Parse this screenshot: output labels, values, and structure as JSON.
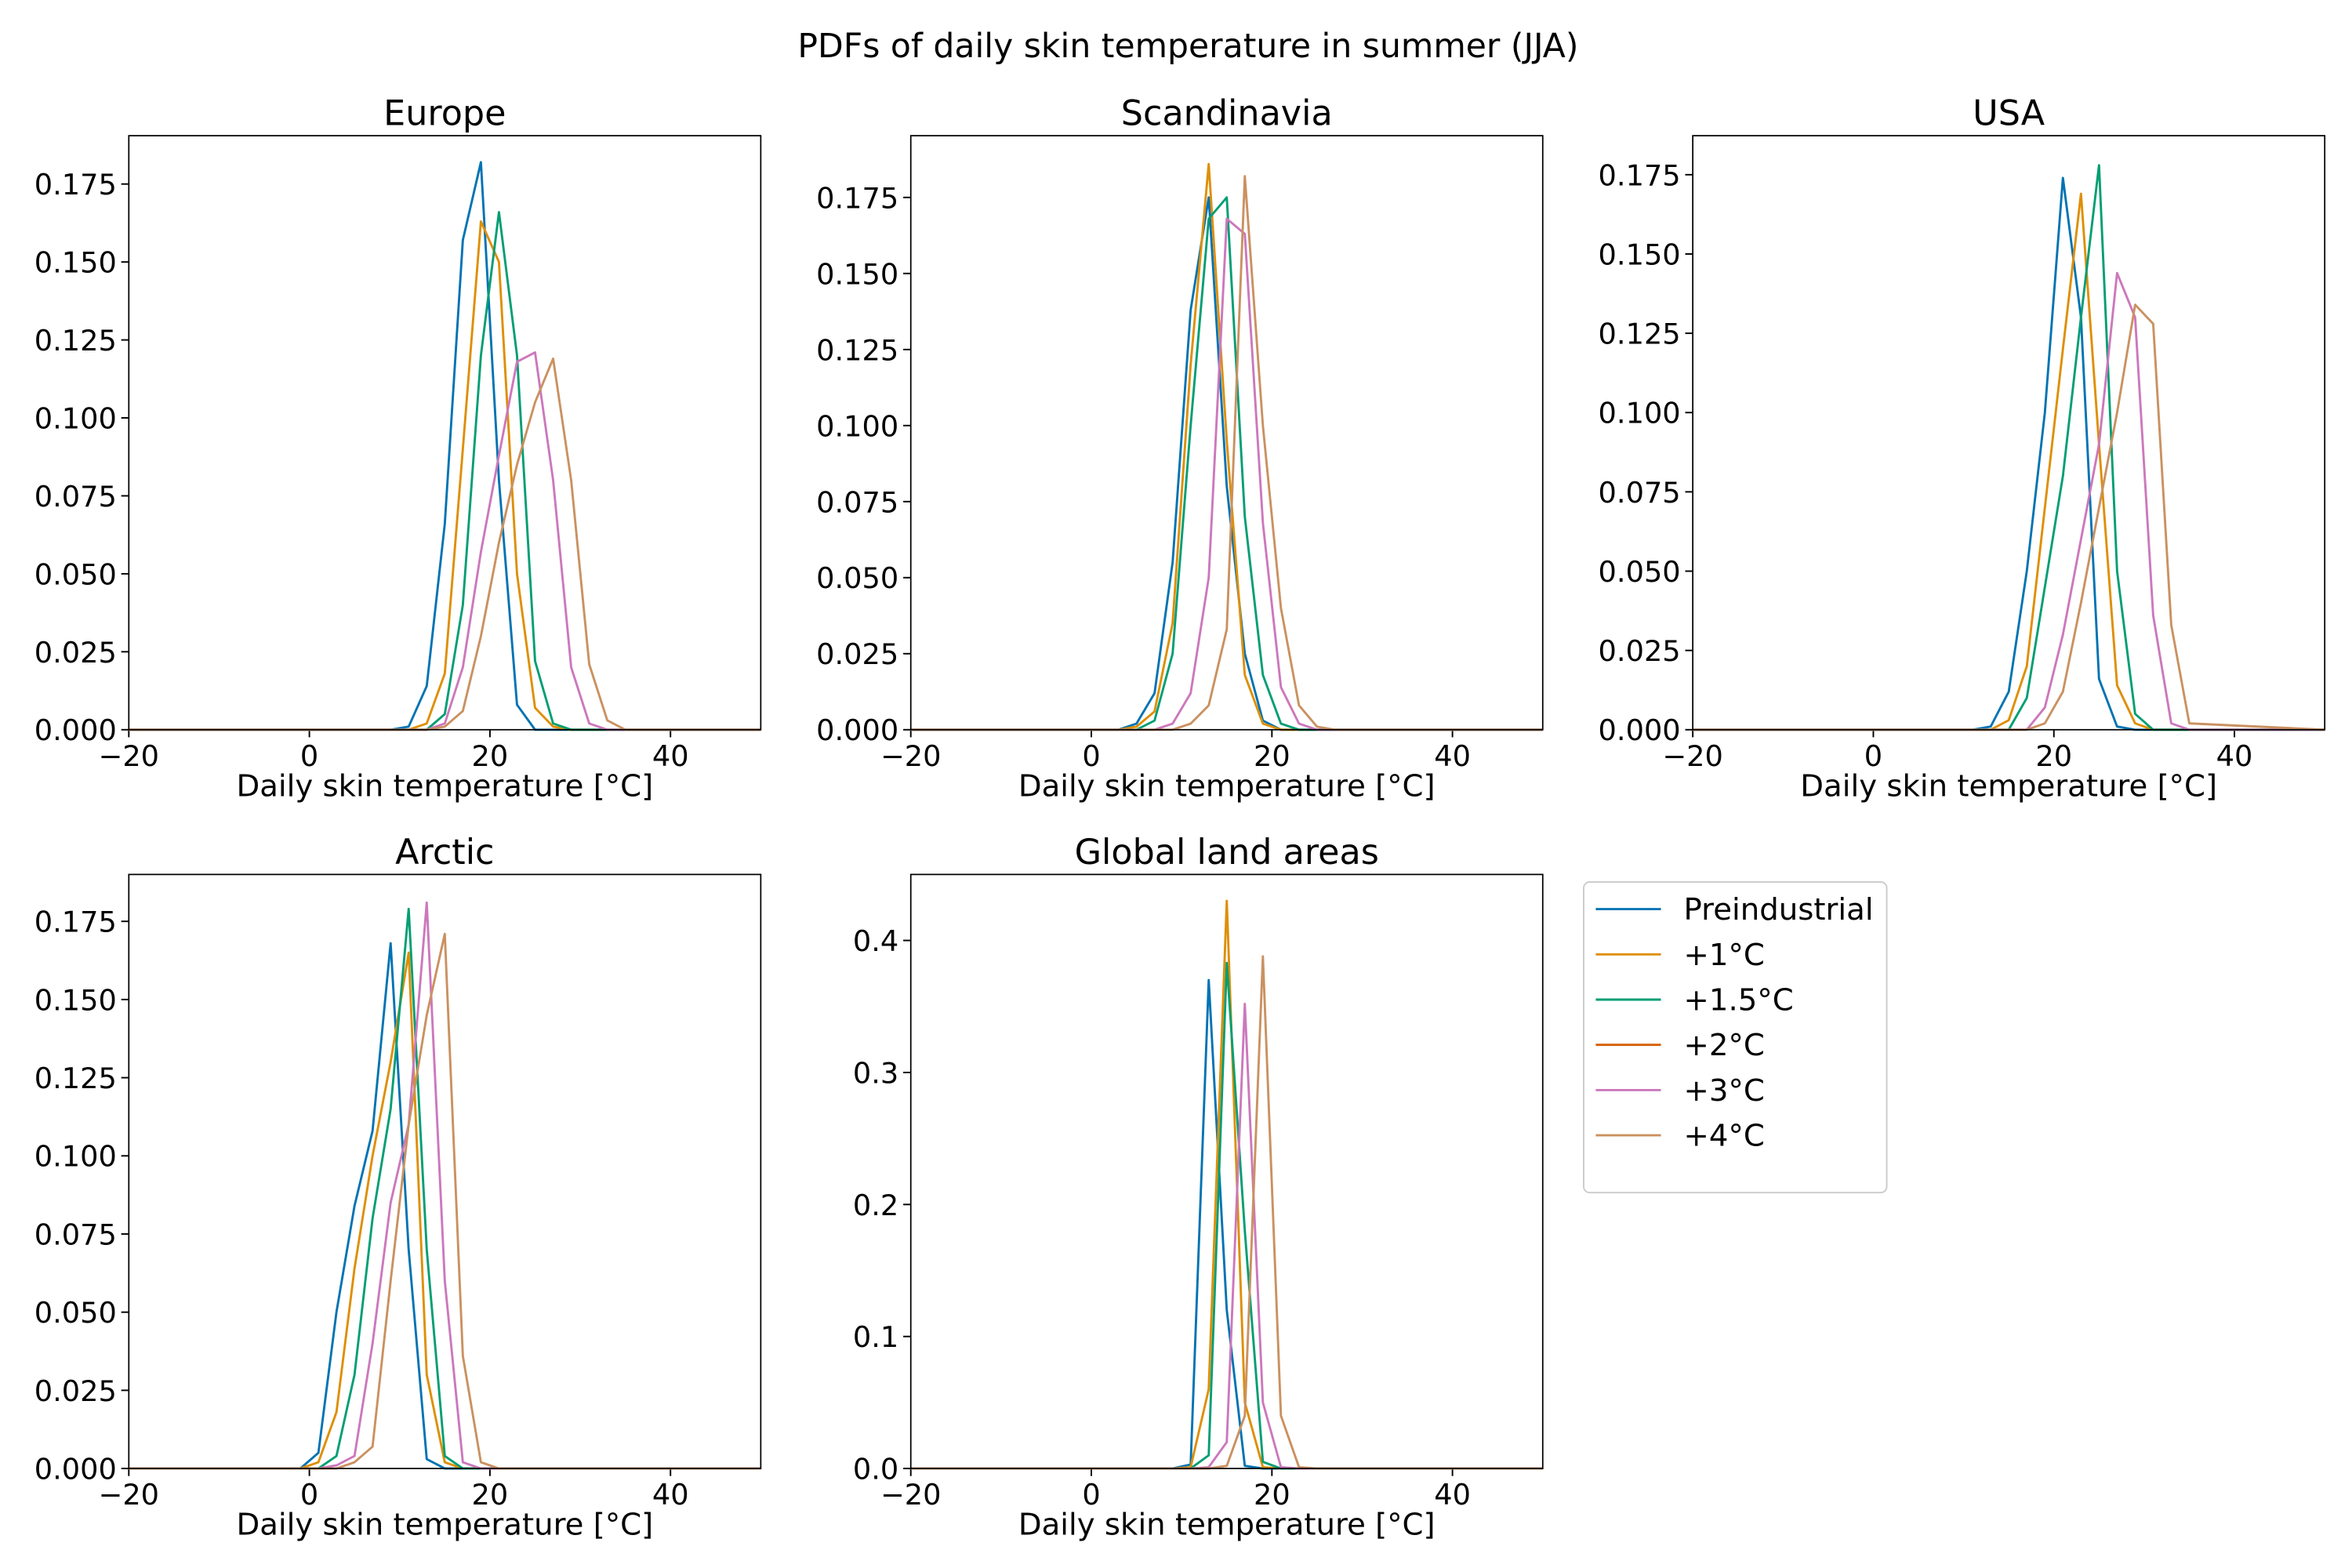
{
  "title": "PDFs of daily skin temperature in summer (JJA)",
  "chart_data": [
    {
      "type": "line",
      "title": "Europe",
      "xlabel": "Daily skin temperature [°C]",
      "x": [
        -20,
        -1,
        1,
        3,
        5,
        7,
        9,
        11,
        13,
        15,
        17,
        19,
        21,
        23,
        25,
        27,
        29,
        31,
        33,
        35,
        50
      ],
      "xlim": [
        -20,
        50
      ],
      "xticks": [
        {
          "value": -20,
          "label": "−20"
        },
        0,
        20,
        40
      ],
      "ylim": [
        0,
        0.1905
      ],
      "yticks": [
        {
          "value": 0,
          "label": "0.000"
        },
        0.025,
        {
          "value": 0.05,
          "label": "0.050"
        },
        0.075,
        {
          "value": 0.1,
          "label": "0.100"
        },
        0.125,
        {
          "value": 0.15,
          "label": "0.150"
        },
        0.175
      ],
      "series": [
        {
          "name": "Preindustrial",
          "color": "#0173b2",
          "values": [
            0,
            0,
            0,
            0,
            0,
            0,
            0,
            0.001,
            0.014,
            0.066,
            0.157,
            0.182,
            0.08,
            0.008,
            0,
            0,
            0,
            0,
            0,
            0,
            0
          ]
        },
        {
          "name": "+1°C",
          "color": "#de8f05",
          "values": [
            0,
            0,
            0,
            0,
            0,
            0,
            0,
            0,
            0.002,
            0.018,
            0.09,
            0.163,
            0.15,
            0.05,
            0.007,
            0.001,
            0,
            0,
            0,
            0,
            0
          ]
        },
        {
          "name": "+1.5°C",
          "color": "#029e73",
          "values": [
            0,
            0,
            0,
            0,
            0,
            0,
            0,
            0,
            0,
            0.005,
            0.04,
            0.12,
            0.166,
            0.12,
            0.022,
            0.002,
            0,
            0,
            0,
            0,
            0
          ]
        },
        {
          "name": "+2°C",
          "color": "#d55e00",
          "values": [
            null,
            null,
            null,
            null,
            null,
            null,
            null,
            null,
            null,
            null,
            null,
            null,
            null,
            null,
            null,
            null,
            null,
            null,
            null,
            null,
            null
          ]
        },
        {
          "name": "+3°C",
          "color": "#cc78bc",
          "values": [
            0,
            0,
            0,
            0,
            0,
            0,
            0,
            0,
            0,
            0.002,
            0.02,
            0.057,
            0.088,
            0.118,
            0.121,
            0.08,
            0.02,
            0.002,
            0,
            0,
            0
          ]
        },
        {
          "name": "+4°C",
          "color": "#ca9161",
          "values": [
            0,
            0,
            0,
            0,
            0,
            0,
            0,
            0,
            0,
            0.001,
            0.006,
            0.03,
            0.06,
            0.085,
            0.105,
            0.119,
            0.08,
            0.021,
            0.003,
            0,
            0
          ]
        }
      ]
    },
    {
      "type": "line",
      "title": "Scandinavia",
      "xlabel": "Daily skin temperature [°C]",
      "x": [
        -20,
        -1,
        1,
        3,
        5,
        7,
        9,
        11,
        13,
        15,
        17,
        19,
        21,
        23,
        25,
        27,
        29,
        31,
        33,
        35,
        50
      ],
      "xlim": [
        -20,
        50
      ],
      "xticks": [
        {
          "value": -20,
          "label": "−20"
        },
        0,
        20,
        40
      ],
      "ylim": [
        0,
        0.1953
      ],
      "yticks": [
        {
          "value": 0,
          "label": "0.000"
        },
        0.025,
        {
          "value": 0.05,
          "label": "0.050"
        },
        0.075,
        {
          "value": 0.1,
          "label": "0.100"
        },
        0.125,
        {
          "value": 0.15,
          "label": "0.150"
        },
        0.175
      ],
      "series": [
        {
          "name": "Preindustrial",
          "color": "#0173b2",
          "values": [
            0,
            0,
            0,
            0,
            0.002,
            0.012,
            0.055,
            0.138,
            0.175,
            0.08,
            0.025,
            0.003,
            0,
            0,
            0,
            0,
            0,
            0,
            0,
            0,
            0
          ]
        },
        {
          "name": "+1°C",
          "color": "#de8f05",
          "values": [
            0,
            0,
            0,
            0,
            0.001,
            0.006,
            0.035,
            0.12,
            0.186,
            0.095,
            0.018,
            0.002,
            0,
            0,
            0,
            0,
            0,
            0,
            0,
            0,
            0
          ]
        },
        {
          "name": "+1.5°C",
          "color": "#029e73",
          "values": [
            0,
            0,
            0,
            0,
            0,
            0.003,
            0.025,
            0.1,
            0.168,
            0.175,
            0.07,
            0.018,
            0.002,
            0,
            0,
            0,
            0,
            0,
            0,
            0,
            0
          ]
        },
        {
          "name": "+2°C",
          "color": "#d55e00",
          "values": [
            null,
            null,
            null,
            null,
            null,
            null,
            null,
            null,
            null,
            null,
            null,
            null,
            null,
            null,
            null,
            null,
            null,
            null,
            null,
            null,
            null
          ]
        },
        {
          "name": "+3°C",
          "color": "#cc78bc",
          "values": [
            0,
            0,
            0,
            0,
            0,
            0,
            0.002,
            0.012,
            0.05,
            0.168,
            0.163,
            0.068,
            0.014,
            0.002,
            0,
            0,
            0,
            0,
            0,
            0,
            0
          ]
        },
        {
          "name": "+4°C",
          "color": "#ca9161",
          "values": [
            0,
            0,
            0,
            0,
            0,
            0,
            0,
            0.002,
            0.008,
            0.033,
            0.182,
            0.1,
            0.04,
            0.008,
            0.001,
            0,
            0,
            0,
            0,
            0,
            0
          ]
        }
      ]
    },
    {
      "type": "line",
      "title": "USA",
      "xlabel": "Daily skin temperature [°C]",
      "x": [
        -20,
        -1,
        1,
        3,
        5,
        7,
        9,
        11,
        13,
        15,
        17,
        19,
        21,
        23,
        25,
        27,
        29,
        31,
        33,
        35,
        50
      ],
      "xlim": [
        -20,
        50
      ],
      "xticks": [
        {
          "value": -20,
          "label": "−20"
        },
        0,
        20,
        40
      ],
      "ylim": [
        0,
        0.1873
      ],
      "yticks": [
        {
          "value": 0,
          "label": "0.000"
        },
        0.025,
        {
          "value": 0.05,
          "label": "0.050"
        },
        0.075,
        {
          "value": 0.1,
          "label": "0.100"
        },
        0.125,
        {
          "value": 0.15,
          "label": "0.150"
        },
        0.175
      ],
      "series": [
        {
          "name": "Preindustrial",
          "color": "#0173b2",
          "values": [
            0,
            0,
            0,
            0,
            0,
            0,
            0,
            0,
            0.001,
            0.012,
            0.05,
            0.1,
            0.174,
            0.13,
            0.016,
            0.001,
            0,
            0,
            0,
            0,
            0
          ]
        },
        {
          "name": "+1°C",
          "color": "#de8f05",
          "values": [
            0,
            0,
            0,
            0,
            0,
            0,
            0,
            0,
            0,
            0.003,
            0.02,
            0.07,
            0.12,
            0.169,
            0.09,
            0.014,
            0.002,
            0,
            0,
            0,
            0
          ]
        },
        {
          "name": "+1.5°C",
          "color": "#029e73",
          "values": [
            0,
            0,
            0,
            0,
            0,
            0,
            0,
            0,
            0,
            0,
            0.01,
            0.045,
            0.08,
            0.13,
            0.178,
            0.05,
            0.005,
            0,
            0,
            0,
            0
          ]
        },
        {
          "name": "+2°C",
          "color": "#d55e00",
          "values": [
            null,
            null,
            null,
            null,
            null,
            null,
            null,
            null,
            null,
            null,
            null,
            null,
            null,
            null,
            null,
            null,
            null,
            null,
            null,
            null,
            null
          ]
        },
        {
          "name": "+3°C",
          "color": "#cc78bc",
          "values": [
            0,
            0,
            0,
            0,
            0,
            0,
            0,
            0,
            0,
            0,
            0,
            0.007,
            0.03,
            0.06,
            0.09,
            0.144,
            0.13,
            0.036,
            0.002,
            0,
            0
          ]
        },
        {
          "name": "+4°C",
          "color": "#ca9161",
          "values": [
            0,
            0,
            0,
            0,
            0,
            0,
            0,
            0,
            0,
            0,
            0,
            0.002,
            0.012,
            0.04,
            0.07,
            0.1,
            0.134,
            0.128,
            0.033,
            0.002,
            0
          ]
        }
      ]
    },
    {
      "type": "line",
      "title": "Arctic",
      "xlabel": "Daily skin temperature [°C]",
      "x": [
        -20,
        -1,
        1,
        3,
        5,
        7,
        9,
        11,
        13,
        15,
        17,
        19,
        21,
        23,
        25,
        27,
        29,
        31,
        33,
        35,
        50
      ],
      "xlim": [
        -20,
        50
      ],
      "xticks": [
        {
          "value": -20,
          "label": "−20"
        },
        0,
        20,
        40
      ],
      "ylim": [
        0,
        0.19
      ],
      "yticks": [
        {
          "value": 0,
          "label": "0.000"
        },
        0.025,
        {
          "value": 0.05,
          "label": "0.050"
        },
        0.075,
        {
          "value": 0.1,
          "label": "0.100"
        },
        0.125,
        {
          "value": 0.15,
          "label": "0.150"
        },
        0.175
      ],
      "series": [
        {
          "name": "Preindustrial",
          "color": "#0173b2",
          "values": [
            0,
            0,
            0.005,
            0.05,
            0.084,
            0.108,
            0.168,
            0.07,
            0.003,
            0,
            0,
            0,
            0,
            0,
            0,
            0,
            0,
            0,
            0,
            0,
            0
          ]
        },
        {
          "name": "+1°C",
          "color": "#de8f05",
          "values": [
            0,
            0,
            0.002,
            0.018,
            0.064,
            0.1,
            0.13,
            0.165,
            0.03,
            0.002,
            0,
            0,
            0,
            0,
            0,
            0,
            0,
            0,
            0,
            0,
            0
          ]
        },
        {
          "name": "+1.5°C",
          "color": "#029e73",
          "values": [
            0,
            0,
            0,
            0.004,
            0.03,
            0.08,
            0.115,
            0.179,
            0.07,
            0.004,
            0,
            0,
            0,
            0,
            0,
            0,
            0,
            0,
            0,
            0,
            0
          ]
        },
        {
          "name": "+2°C",
          "color": "#d55e00",
          "values": [
            null,
            null,
            null,
            null,
            null,
            null,
            null,
            null,
            null,
            null,
            null,
            null,
            null,
            null,
            null,
            null,
            null,
            null,
            null,
            null,
            null
          ]
        },
        {
          "name": "+3°C",
          "color": "#cc78bc",
          "values": [
            0,
            0,
            0,
            0.001,
            0.004,
            0.04,
            0.085,
            0.11,
            0.181,
            0.06,
            0.002,
            0,
            0,
            0,
            0,
            0,
            0,
            0,
            0,
            0,
            0
          ]
        },
        {
          "name": "+4°C",
          "color": "#ca9161",
          "values": [
            0,
            0,
            0,
            0,
            0.002,
            0.007,
            0.06,
            0.11,
            0.145,
            0.171,
            0.036,
            0.002,
            0,
            0,
            0,
            0,
            0,
            0,
            0,
            0,
            0
          ]
        }
      ]
    },
    {
      "type": "line",
      "title": "Global land areas",
      "xlabel": "Daily skin temperature [°C]",
      "legend": "outside-right",
      "x": [
        -20,
        -1,
        1,
        3,
        5,
        7,
        9,
        11,
        13,
        15,
        17,
        19,
        21,
        23,
        25,
        27,
        29,
        31,
        33,
        35,
        50
      ],
      "xlim": [
        -20,
        50
      ],
      "xticks": [
        {
          "value": -20,
          "label": "−20"
        },
        0,
        20,
        40
      ],
      "ylim": [
        0,
        0.45
      ],
      "yticks": [
        {
          "value": 0,
          "label": "0.0"
        },
        0.1,
        0.2,
        0.3,
        0.4
      ],
      "series": [
        {
          "name": "Preindustrial",
          "color": "#0173b2",
          "values": [
            0,
            0,
            0,
            0,
            0,
            0,
            0,
            0.003,
            0.37,
            0.12,
            0.002,
            0,
            0,
            0,
            0,
            0,
            0,
            0,
            0,
            0,
            0
          ]
        },
        {
          "name": "+1°C",
          "color": "#de8f05",
          "values": [
            0,
            0,
            0,
            0,
            0,
            0,
            0,
            0.001,
            0.06,
            0.43,
            0.05,
            0.001,
            0,
            0,
            0,
            0,
            0,
            0,
            0,
            0,
            0
          ]
        },
        {
          "name": "+1.5°C",
          "color": "#029e73",
          "values": [
            0,
            0,
            0,
            0,
            0,
            0,
            0,
            0,
            0.01,
            0.383,
            0.18,
            0.005,
            0,
            0,
            0,
            0,
            0,
            0,
            0,
            0,
            0
          ]
        },
        {
          "name": "+2°C",
          "color": "#d55e00",
          "values": [
            null,
            null,
            null,
            null,
            null,
            null,
            null,
            null,
            null,
            null,
            null,
            null,
            null,
            null,
            null,
            null,
            null,
            null,
            null,
            null,
            null
          ]
        },
        {
          "name": "+3°C",
          "color": "#cc78bc",
          "values": [
            0,
            0,
            0,
            0,
            0,
            0,
            0,
            0,
            0.001,
            0.02,
            0.352,
            0.05,
            0.001,
            0,
            0,
            0,
            0,
            0,
            0,
            0,
            0
          ]
        },
        {
          "name": "+4°C",
          "color": "#ca9161",
          "values": [
            0,
            0,
            0,
            0,
            0,
            0,
            0,
            0,
            0,
            0.002,
            0.04,
            0.388,
            0.04,
            0.001,
            0,
            0,
            0,
            0,
            0,
            0,
            0
          ]
        }
      ]
    }
  ]
}
